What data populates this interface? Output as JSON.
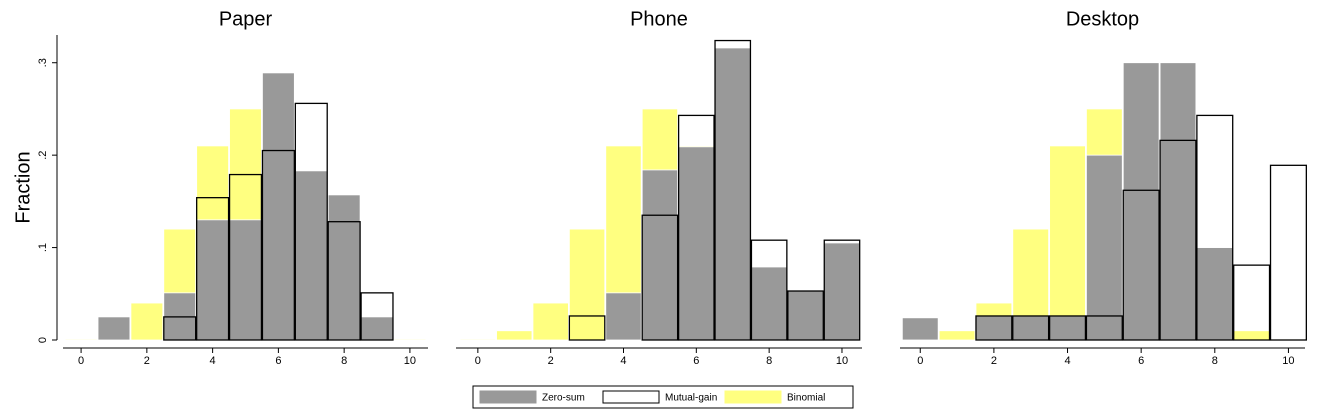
{
  "chart_data": [
    {
      "type": "histogram",
      "title": "Paper",
      "y_label": "Fraction",
      "x": [
        0,
        1,
        2,
        3,
        4,
        5,
        6,
        7,
        8,
        9,
        10
      ],
      "xlim": [
        -0.55,
        10.55
      ],
      "xticks": [
        0,
        2,
        4,
        6,
        8,
        10
      ],
      "ylim": [
        0,
        0.33
      ],
      "yticks": [
        0,
        {
          "value": 0.1,
          "label": ".1"
        },
        {
          "value": 0.2,
          "label": ".2"
        },
        {
          "value": 0.3,
          "label": ".3"
        }
      ],
      "series": [
        {
          "name": "Binomial",
          "color": "#ffff80",
          "values": [
            0.001,
            0.01,
            0.04,
            0.12,
            0.21,
            0.25,
            0.21,
            0.12,
            0.04,
            0.01,
            0.001
          ]
        },
        {
          "name": "Zero-sum",
          "color": "#999999",
          "values": [
            0,
            0.025,
            0,
            0.051,
            0.13,
            0.13,
            0.289,
            0.183,
            0.157,
            0.025,
            0
          ]
        },
        {
          "name": "Mutual-gain",
          "color": "#000000",
          "outline": true,
          "values": [
            0,
            0,
            0,
            0.025,
            0.154,
            0.179,
            0.205,
            0.256,
            0.128,
            0.051,
            0
          ]
        }
      ]
    },
    {
      "type": "histogram",
      "title": "Phone",
      "x": [
        0,
        1,
        2,
        3,
        4,
        5,
        6,
        7,
        8,
        9,
        10
      ],
      "xlim": [
        -0.6,
        10.55
      ],
      "xticks": [
        0,
        2,
        4,
        6,
        8,
        10
      ],
      "ylim": [
        0,
        0.33
      ],
      "series": [
        {
          "name": "Binomial",
          "color": "#ffff80",
          "values": [
            0.001,
            0.01,
            0.04,
            0.12,
            0.21,
            0.25,
            0.21,
            0.12,
            0.04,
            0.01,
            0.001
          ]
        },
        {
          "name": "Zero-sum",
          "color": "#999999",
          "values": [
            0,
            0,
            0,
            0,
            0.051,
            0.184,
            0.209,
            0.316,
            0.079,
            0.053,
            0.105
          ]
        },
        {
          "name": "Mutual-gain",
          "color": "#000000",
          "outline": true,
          "values": [
            0,
            0,
            0,
            0.026,
            0,
            0.135,
            0.243,
            0.324,
            0.108,
            0.053,
            0.108
          ]
        }
      ]
    },
    {
      "type": "histogram",
      "title": "Desktop",
      "x": [
        0,
        1,
        2,
        3,
        4,
        5,
        6,
        7,
        8,
        9,
        10
      ],
      "xlim": [
        -0.55,
        10.45
      ],
      "xticks": [
        0,
        2,
        4,
        6,
        8,
        10
      ],
      "ylim": [
        0,
        0.33
      ],
      "series": [
        {
          "name": "Binomial",
          "color": "#ffff80",
          "values": [
            0.001,
            0.01,
            0.04,
            0.12,
            0.21,
            0.25,
            0.21,
            0.12,
            0.04,
            0.01,
            0.001
          ]
        },
        {
          "name": "Zero-sum",
          "color": "#999999",
          "values": [
            0.024,
            0,
            0.026,
            0.026,
            0.026,
            0.2,
            0.3,
            0.3,
            0.1,
            0,
            0
          ]
        },
        {
          "name": "Mutual-gain",
          "color": "#000000",
          "outline": true,
          "values": [
            0,
            0,
            0.026,
            0.026,
            0.026,
            0.026,
            0.162,
            0.216,
            0.243,
            0.081,
            0.189
          ]
        }
      ]
    }
  ]
}
